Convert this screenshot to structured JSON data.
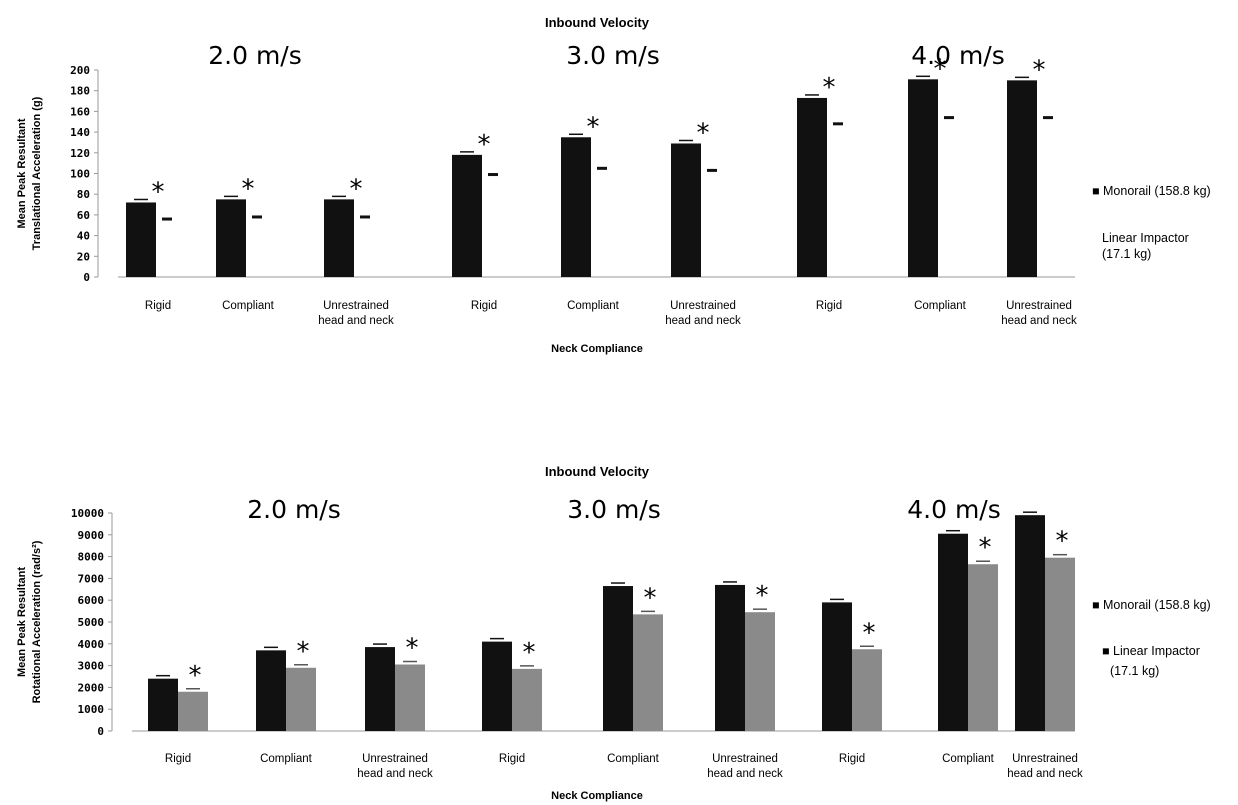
{
  "colors": {
    "monorail": "#111111",
    "linear_impactor": "#8a8a8a",
    "axis": "#999999",
    "text": "#111111"
  },
  "velocity_labels": [
    "2.0 m/s",
    "3.0 m/s",
    "4.0 m/s"
  ],
  "significance_marker": "*",
  "chart_data": [
    {
      "type": "bar",
      "title": "Inbound Velocity",
      "ylabel_lines": [
        "Mean Peak Resultant",
        "Translational Acceleration (g)"
      ],
      "xlabel": "Neck Compliance",
      "ylim": [
        0,
        200
      ],
      "yticks": [
        0,
        20,
        40,
        60,
        80,
        100,
        120,
        140,
        160,
        180,
        200
      ],
      "categories": [
        [
          "Rigid"
        ],
        [
          "Compliant"
        ],
        [
          "Unrestrained",
          "head and neck"
        ],
        [
          "Rigid"
        ],
        [
          "Compliant"
        ],
        [
          "Unrestrained",
          "head and neck"
        ],
        [
          "Rigid"
        ],
        [
          "Compliant"
        ],
        [
          "Unrestrained",
          "head and neck"
        ]
      ],
      "series": [
        {
          "name": "Monorail (158.8 kg)",
          "values": [
            72,
            75,
            75,
            118,
            135,
            129,
            173,
            191,
            190
          ]
        },
        {
          "name": "Linear Impactor (17.1 kg)",
          "values": [
            56,
            58,
            58,
            99,
            105,
            103,
            148,
            154,
            154
          ]
        }
      ],
      "significant": [
        true,
        true,
        true,
        true,
        true,
        true,
        true,
        true,
        true
      ],
      "legend": [
        "■ Monorail (158.8 kg)",
        "Linear Impactor",
        "(17.1 kg)"
      ],
      "legend_position": "right"
    },
    {
      "type": "bar",
      "title": "Inbound Velocity",
      "ylabel_lines": [
        "Mean Peak Resultant",
        "Rotational Acceleration (rad/s²)"
      ],
      "xlabel": "Neck Compliance",
      "ylim": [
        0,
        10000
      ],
      "yticks": [
        0,
        1000,
        2000,
        3000,
        4000,
        5000,
        6000,
        7000,
        8000,
        9000,
        10000
      ],
      "categories": [
        [
          "Rigid"
        ],
        [
          "Compliant"
        ],
        [
          "Unrestrained",
          "head and neck"
        ],
        [
          "Rigid"
        ],
        [
          "Compliant"
        ],
        [
          "Unrestrained",
          "head and neck"
        ],
        [
          "Rigid"
        ],
        [
          "Compliant"
        ],
        [
          "Unrestrained",
          "head and neck"
        ]
      ],
      "series": [
        {
          "name": "Monorail (158.8 kg)",
          "values": [
            2400,
            3700,
            3850,
            4100,
            6650,
            6700,
            5900,
            9050,
            9900
          ]
        },
        {
          "name": "Linear Impactor (17.1 kg)",
          "values": [
            1800,
            2900,
            3050,
            2850,
            5350,
            5450,
            3750,
            7650,
            7950
          ]
        }
      ],
      "significant": [
        true,
        true,
        true,
        true,
        true,
        true,
        true,
        true,
        true
      ],
      "legend": [
        "■ Monorail (158.8 kg)",
        "■ Linear Impactor",
        "(17.1 kg)"
      ],
      "legend_position": "right"
    }
  ]
}
